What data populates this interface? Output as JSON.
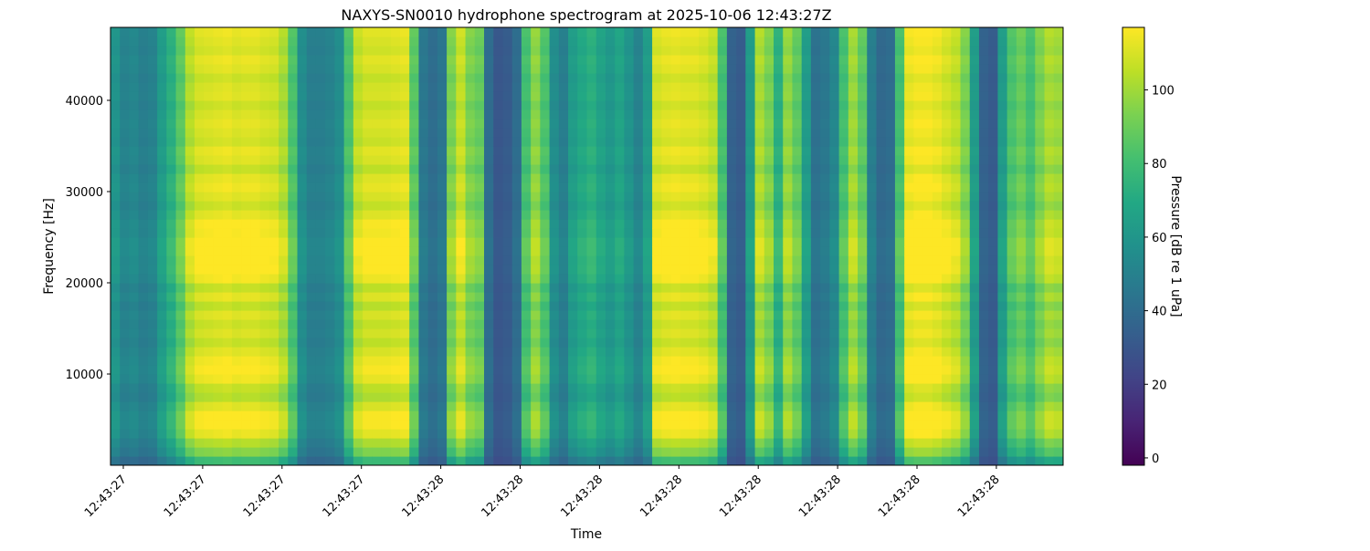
{
  "chart_data": {
    "type": "heatmap",
    "title": "NAXYS-SN0010 hydrophone spectrogram at 2025-10-06 12:43:27Z",
    "xlabel": "Time",
    "ylabel": "Frequency [Hz]",
    "x_tick_labels": [
      "12:43:27",
      "12:43:27",
      "12:43:27",
      "12:43:27",
      "12:43:28",
      "12:43:28",
      "12:43:28",
      "12:43:28",
      "12:43:28",
      "12:43:28",
      "12:43:28",
      "12:43:28"
    ],
    "y_tick_values": [
      10000,
      20000,
      30000,
      40000
    ],
    "ylim": [
      0,
      48000
    ],
    "colorbar": {
      "label": "Pressure [dB re 1 uPa]",
      "ticks": [
        0,
        20,
        40,
        60,
        80,
        100
      ],
      "range": [
        -2,
        117
      ],
      "colormap": "viridis"
    },
    "time_profile_dB": [
      58,
      50,
      52,
      48,
      50,
      62,
      72,
      85,
      102,
      108,
      109,
      110,
      111,
      109,
      110,
      110,
      108,
      107,
      100,
      82,
      55,
      48,
      48,
      50,
      55,
      82,
      104,
      108,
      108,
      108,
      109,
      110,
      85,
      45,
      40,
      44,
      92,
      105,
      92,
      88,
      40,
      30,
      32,
      40,
      80,
      95,
      82,
      55,
      48,
      62,
      68,
      72,
      65,
      60,
      66,
      58,
      50,
      62,
      108,
      110,
      111,
      110,
      110,
      108,
      104,
      80,
      35,
      32,
      62,
      100,
      92,
      72,
      96,
      86,
      62,
      42,
      45,
      52,
      80,
      98,
      86,
      48,
      38,
      40,
      80,
      112,
      114,
      114,
      112,
      108,
      104,
      92,
      62,
      35,
      32,
      62,
      82,
      88,
      80,
      92,
      100,
      98
    ],
    "frequency_profile_dB": [
      -30,
      -14,
      -6,
      4,
      8,
      8,
      2,
      -6,
      -3,
      5,
      8,
      6,
      2,
      -3,
      1,
      -2,
      2,
      -4,
      3,
      -3,
      6,
      10,
      9,
      12,
      12,
      7,
      8,
      3,
      -2,
      2,
      5,
      3,
      -3,
      2,
      4,
      -1,
      1,
      3,
      1,
      -2,
      2,
      1,
      -2,
      2,
      4,
      0,
      2,
      4
    ]
  }
}
